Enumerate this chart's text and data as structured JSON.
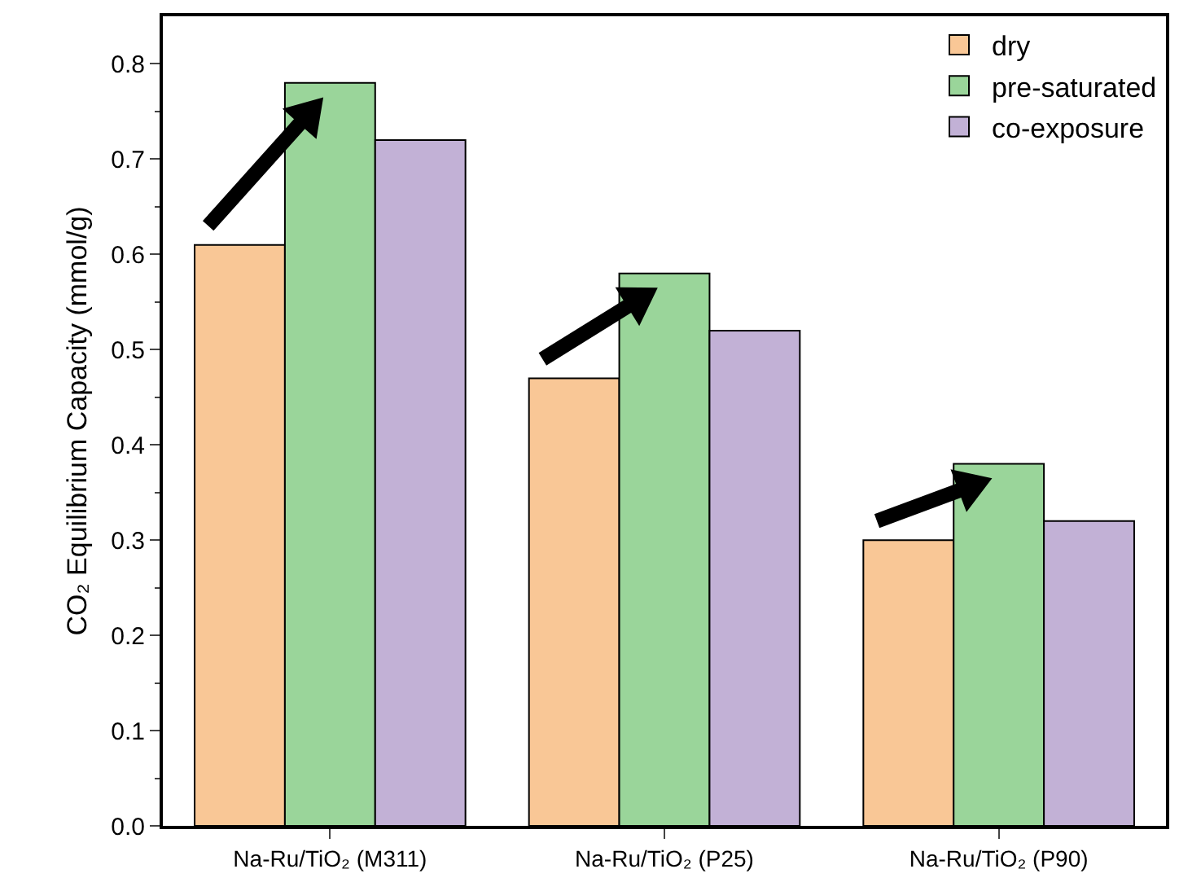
{
  "chart_data": {
    "type": "bar",
    "ylabel": "CO₂ Equilibrium Capacity (mmol/g)",
    "categories": [
      "Na-Ru/TiO₂ (M311)",
      "Na-Ru/TiO₂ (P25)",
      "Na-Ru/TiO₂ (P90)"
    ],
    "series": [
      {
        "name": "dry",
        "color": "#f9c796",
        "values": [
          0.61,
          0.47,
          0.3
        ]
      },
      {
        "name": "pre-saturated",
        "color": "#9ad59a",
        "values": [
          0.78,
          0.58,
          0.38
        ]
      },
      {
        "name": "co-exposure",
        "color": "#c2b1d6",
        "values": [
          0.72,
          0.52,
          0.32
        ]
      }
    ],
    "ylim": [
      0,
      0.85
    ],
    "yticks": [
      {
        "value": 0,
        "label": "0.0"
      },
      0.1,
      0.2,
      0.3,
      0.4,
      0.5,
      0.6,
      0.7,
      0.8
    ],
    "grid": false,
    "legend": "top right"
  }
}
